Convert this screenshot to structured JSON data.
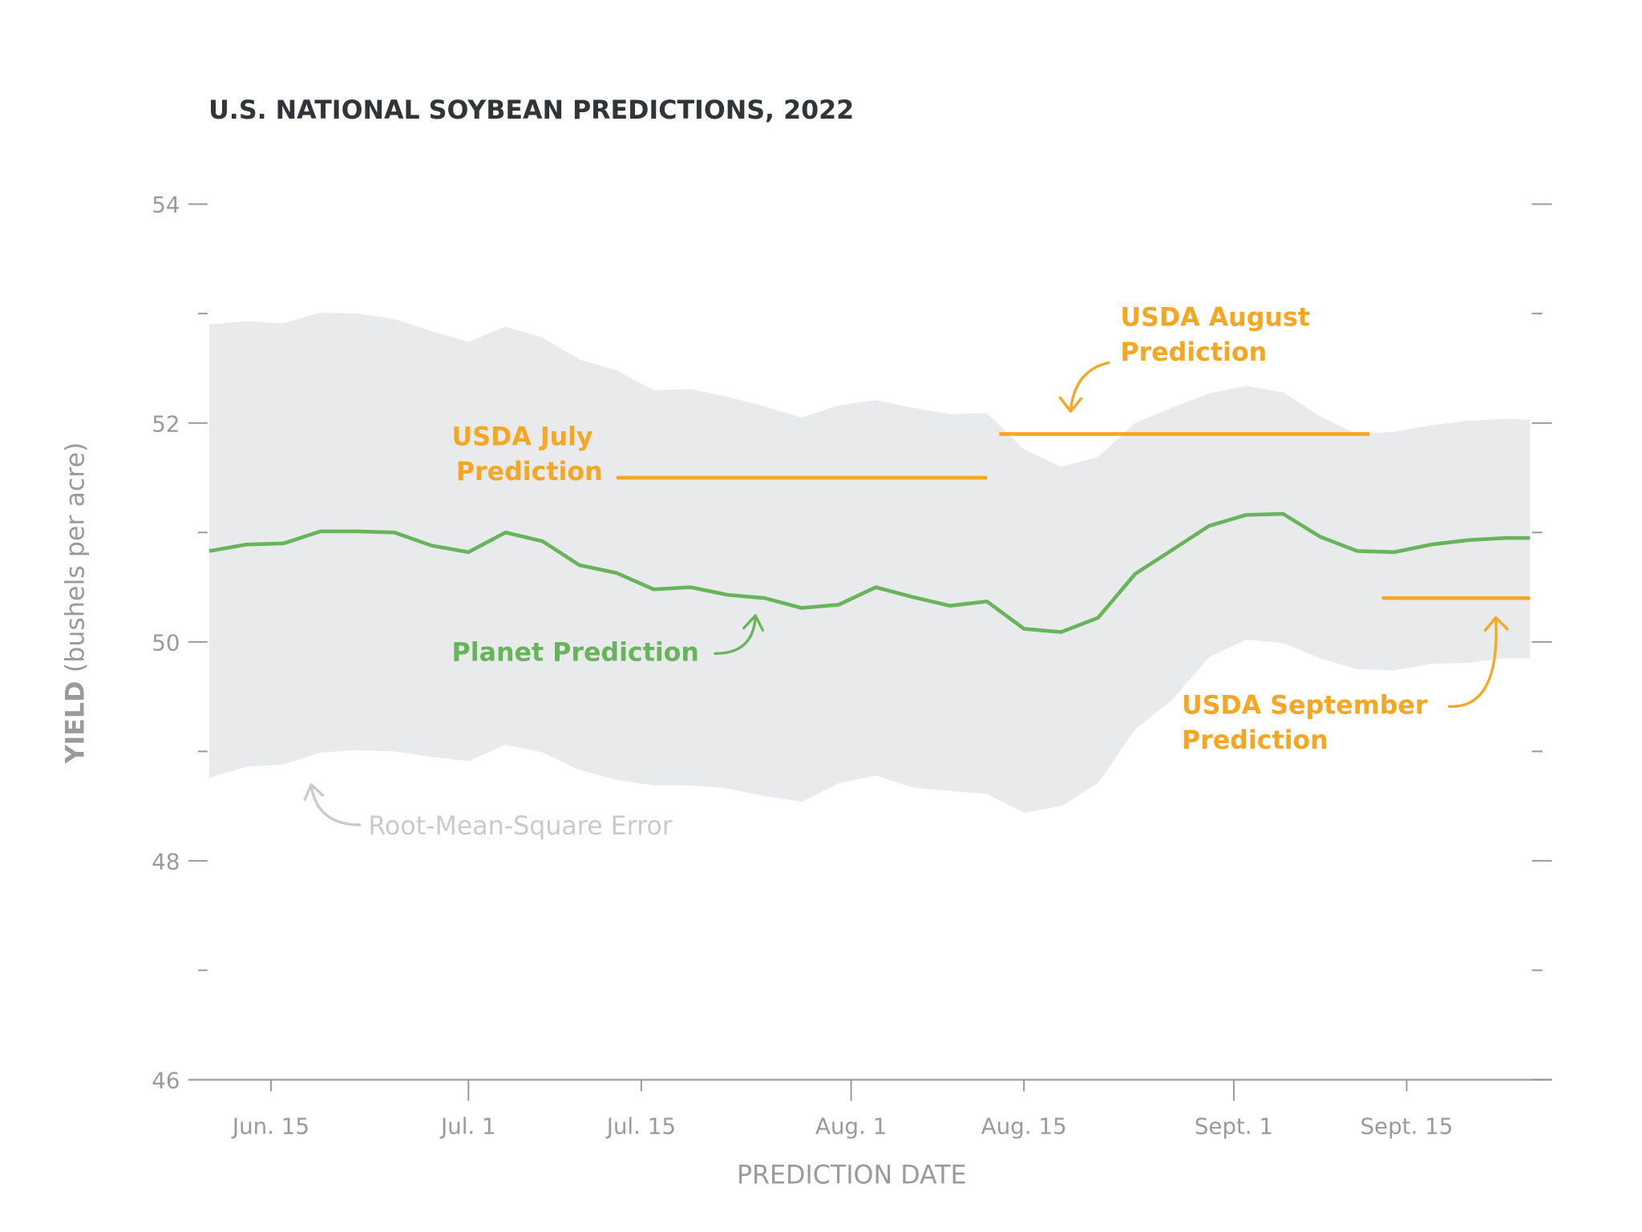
{
  "chart_data": {
    "type": "line",
    "title": "U.S. NATIONAL SOYBEAN PREDICTIONS, 2022",
    "xlabel": "PREDICTION DATE",
    "ylabel": {
      "main": "YIELD",
      "unit": "(bushels per acre)"
    },
    "ylim": [
      46,
      54
    ],
    "yticks": [
      46,
      47,
      48,
      49,
      50,
      51,
      52,
      53,
      54
    ],
    "ytick_labels": {
      "46": "46",
      "48": "48",
      "50": "50",
      "52": "52",
      "54": "54"
    },
    "xticks": [
      {
        "date": "2022-06-15",
        "label": "Jun. 15"
      },
      {
        "date": "2022-07-01",
        "label": "Jul. 1"
      },
      {
        "date": "2022-07-15",
        "label": "Jul. 15"
      },
      {
        "date": "2022-08-01",
        "label": "Aug. 1"
      },
      {
        "date": "2022-08-15",
        "label": "Aug. 15"
      },
      {
        "date": "2022-09-01",
        "label": "Sept. 1"
      },
      {
        "date": "2022-09-15",
        "label": "Sept. 15"
      }
    ],
    "grid": false,
    "colors": {
      "planet": "#67b45a",
      "usda": "#f5a623",
      "rmse_band": "#e9eaeb",
      "axis": "#9a9a9a"
    },
    "dates": [
      "2022-06-10",
      "2022-06-13",
      "2022-06-16",
      "2022-06-19",
      "2022-06-22",
      "2022-06-25",
      "2022-06-28",
      "2022-07-01",
      "2022-07-04",
      "2022-07-07",
      "2022-07-10",
      "2022-07-13",
      "2022-07-16",
      "2022-07-19",
      "2022-07-22",
      "2022-07-25",
      "2022-07-28",
      "2022-07-31",
      "2022-08-03",
      "2022-08-06",
      "2022-08-09",
      "2022-08-12",
      "2022-08-15",
      "2022-08-18",
      "2022-08-21",
      "2022-08-24",
      "2022-08-27",
      "2022-08-30",
      "2022-09-02",
      "2022-09-05",
      "2022-09-08",
      "2022-09-11",
      "2022-09-14",
      "2022-09-17",
      "2022-09-20",
      "2022-09-23",
      "2022-09-25"
    ],
    "series": [
      {
        "name": "Planet Prediction",
        "values": [
          50.83,
          50.89,
          50.9,
          51.01,
          51.01,
          51.0,
          50.88,
          50.82,
          51.0,
          50.92,
          50.7,
          50.63,
          50.48,
          50.5,
          50.43,
          50.4,
          50.31,
          50.34,
          50.5,
          50.41,
          50.33,
          50.37,
          50.12,
          50.09,
          50.22,
          50.62,
          50.84,
          51.06,
          51.16,
          51.17,
          50.96,
          50.83,
          50.82,
          50.89,
          50.93,
          50.95,
          50.95
        ]
      }
    ],
    "band": {
      "name": "Root-Mean-Square Error",
      "upper": [
        52.9,
        52.93,
        52.91,
        53.01,
        53.0,
        52.95,
        52.84,
        52.74,
        52.88,
        52.78,
        52.58,
        52.48,
        52.3,
        52.31,
        52.24,
        52.15,
        52.05,
        52.16,
        52.21,
        52.14,
        52.08,
        52.09,
        51.76,
        51.6,
        51.69,
        52.0,
        52.14,
        52.27,
        52.34,
        52.28,
        52.06,
        51.9,
        51.92,
        51.98,
        52.02,
        52.04,
        52.03
      ],
      "lower": [
        48.76,
        48.86,
        48.88,
        48.99,
        49.01,
        49.0,
        48.95,
        48.91,
        49.06,
        48.99,
        48.83,
        48.74,
        48.69,
        48.69,
        48.66,
        48.59,
        48.54,
        48.71,
        48.78,
        48.67,
        48.64,
        48.61,
        48.44,
        48.5,
        48.71,
        49.2,
        49.47,
        49.86,
        50.02,
        49.99,
        49.85,
        49.75,
        49.74,
        49.8,
        49.81,
        49.85,
        49.85
      ]
    },
    "usda_predictions": [
      {
        "name": "USDA July Prediction",
        "label_lines": [
          "USDA July",
          "Prediction"
        ],
        "value": 51.5,
        "start": "2022-07-13",
        "end": "2022-08-12"
      },
      {
        "name": "USDA August Prediction",
        "label_lines": [
          "USDA August",
          "Prediction"
        ],
        "value": 51.9,
        "start": "2022-08-13",
        "end": "2022-09-12"
      },
      {
        "name": "USDA September Prediction",
        "label_lines": [
          "USDA September",
          "Prediction"
        ],
        "value": 50.4,
        "start": "2022-09-13",
        "end": "2022-09-25"
      }
    ],
    "annotations": {
      "planet": "Planet Prediction",
      "rmse": "Root-Mean-Square Error"
    }
  }
}
